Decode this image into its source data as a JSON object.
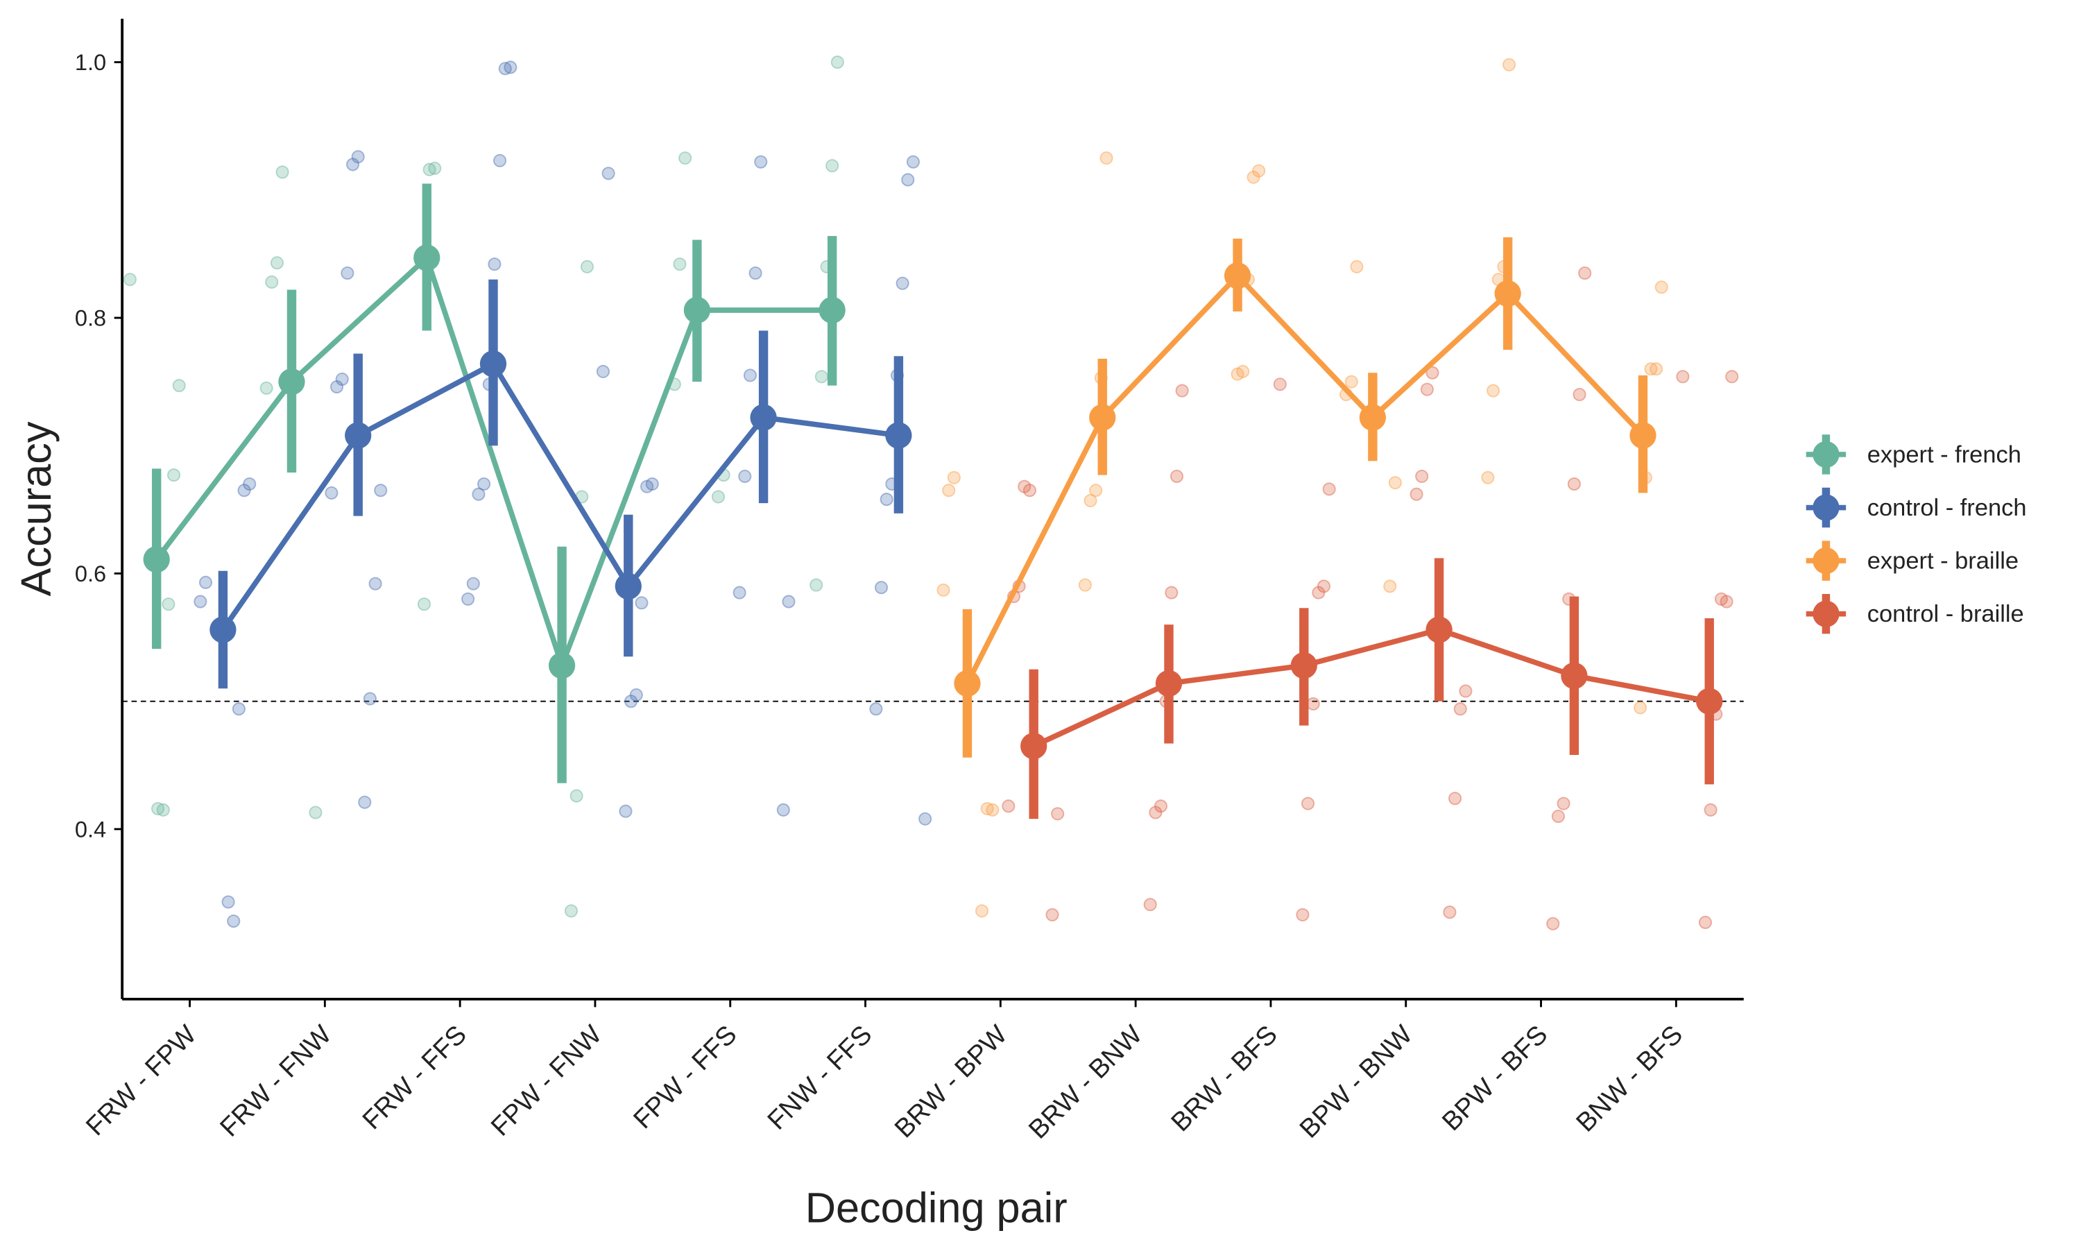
{
  "chart_data": {
    "type": "pointrange",
    "x_label": "Decoding pair",
    "y_label": "Accuracy",
    "categories": [
      "FRW - FPW",
      "FRW - FNW",
      "FRW - FFS",
      "FPW - FNW",
      "FPW - FFS",
      "FNW - FFS",
      "BRW - BPW",
      "BRW - BNW",
      "BRW - BFS",
      "BPW - BNW",
      "BPW - BFS",
      "BNW - BFS"
    ],
    "ylim": [
      0.267,
      1.034
    ],
    "yticks": [
      0.4,
      0.6,
      0.8,
      {
        "value": 1.0,
        "label": "1.0"
      }
    ],
    "hline": 0.5,
    "grid": false,
    "legend": "right",
    "series": [
      {
        "name": "expert - french",
        "color": "#66b39b",
        "offset": -1,
        "values": [
          0.611,
          0.75,
          0.847,
          0.528,
          0.806,
          0.806,
          null,
          null,
          null,
          null,
          null,
          null
        ],
        "lower": [
          0.541,
          0.679,
          0.79,
          0.436,
          0.75,
          0.747,
          null,
          null,
          null,
          null,
          null,
          null
        ],
        "upper": [
          0.682,
          0.822,
          0.905,
          0.621,
          0.861,
          0.864,
          null,
          null,
          null,
          null,
          null,
          null
        ],
        "points": [
          [
            0.83,
            0.747,
            0.677,
            0.576,
            0.415,
            0.416
          ],
          [
            0.914,
            0.843,
            0.828,
            0.745,
            0.413
          ],
          [
            0.917,
            0.916,
            0.576
          ],
          [
            0.84,
            0.66,
            0.426,
            0.336
          ],
          [
            0.925,
            0.842,
            0.748,
            0.677,
            0.66
          ],
          [
            1.0,
            0.919,
            0.84,
            0.754,
            0.591
          ],
          [],
          [],
          [],
          [],
          [],
          []
        ]
      },
      {
        "name": "control - french",
        "color": "#4a6fb0",
        "offset": 1,
        "values": [
          0.556,
          0.708,
          0.764,
          0.59,
          0.722,
          0.708,
          null,
          null,
          null,
          null,
          null,
          null
        ],
        "lower": [
          0.51,
          0.645,
          0.7,
          0.535,
          0.655,
          0.647,
          null,
          null,
          null,
          null,
          null,
          null
        ],
        "upper": [
          0.602,
          0.772,
          0.83,
          0.646,
          0.79,
          0.77,
          null,
          null,
          null,
          null,
          null,
          null
        ],
        "points": [
          [
            0.593,
            0.578,
            0.67,
            0.665,
            0.494,
            0.328,
            0.343
          ],
          [
            0.926,
            0.92,
            0.835,
            0.752,
            0.746,
            0.663,
            0.665,
            0.592,
            0.502,
            0.421
          ],
          [
            0.996,
            0.995,
            0.923,
            0.842,
            0.748,
            0.67,
            0.662,
            0.592,
            0.58
          ],
          [
            0.913,
            0.758,
            0.67,
            0.668,
            0.577,
            0.505,
            0.5,
            0.414
          ],
          [
            0.922,
            0.835,
            0.755,
            0.676,
            0.585,
            0.578,
            0.415
          ],
          [
            0.922,
            0.908,
            0.827,
            0.755,
            0.67,
            0.658,
            0.589,
            0.494,
            0.408
          ],
          [],
          [],
          [],
          [],
          [],
          []
        ]
      },
      {
        "name": "expert - braille",
        "color": "#f99d45",
        "offset": -1,
        "values": [
          null,
          null,
          null,
          null,
          null,
          null,
          0.514,
          0.722,
          0.833,
          0.722,
          0.819,
          0.708
        ],
        "lower": [
          null,
          null,
          null,
          null,
          null,
          null,
          0.456,
          0.677,
          0.805,
          0.688,
          0.775,
          0.663
        ],
        "upper": [
          null,
          null,
          null,
          null,
          null,
          null,
          0.572,
          0.768,
          0.862,
          0.757,
          0.863,
          0.755
        ],
        "points": [
          [],
          [],
          [],
          [],
          [],
          [],
          [
            0.675,
            0.665,
            0.587,
            0.415,
            0.416,
            0.336
          ],
          [
            0.925,
            0.753,
            0.665,
            0.657,
            0.591
          ],
          [
            0.915,
            0.91,
            0.83,
            0.758,
            0.756
          ],
          [
            0.84,
            0.75,
            0.74,
            0.671,
            0.59
          ],
          [
            0.998,
            0.84,
            0.83,
            0.743,
            0.675
          ],
          [
            0.824,
            0.76,
            0.76,
            0.675,
            0.495
          ]
        ]
      },
      {
        "name": "control - braille",
        "color": "#d95f43",
        "offset": 1,
        "values": [
          null,
          null,
          null,
          null,
          null,
          null,
          0.465,
          0.514,
          0.528,
          0.556,
          0.52,
          0.5
        ],
        "lower": [
          null,
          null,
          null,
          null,
          null,
          null,
          0.408,
          0.467,
          0.481,
          0.5,
          0.458,
          0.435
        ],
        "upper": [
          null,
          null,
          null,
          null,
          null,
          null,
          0.525,
          0.56,
          0.573,
          0.612,
          0.582,
          0.565
        ],
        "points": [
          [],
          [],
          [],
          [],
          [],
          [],
          [
            0.665,
            0.668,
            0.59,
            0.582,
            0.418,
            0.412,
            0.333
          ],
          [
            0.743,
            0.676,
            0.585,
            0.5,
            0.418,
            0.413,
            0.341
          ],
          [
            0.748,
            0.666,
            0.59,
            0.585,
            0.498,
            0.42,
            0.333
          ],
          [
            0.757,
            0.744,
            0.676,
            0.662,
            0.508,
            0.494,
            0.424,
            0.335
          ],
          [
            0.835,
            0.74,
            0.67,
            0.58,
            0.42,
            0.41,
            0.326
          ],
          [
            0.754,
            0.754,
            0.578,
            0.58,
            0.49,
            0.415,
            0.327
          ]
        ]
      }
    ]
  }
}
